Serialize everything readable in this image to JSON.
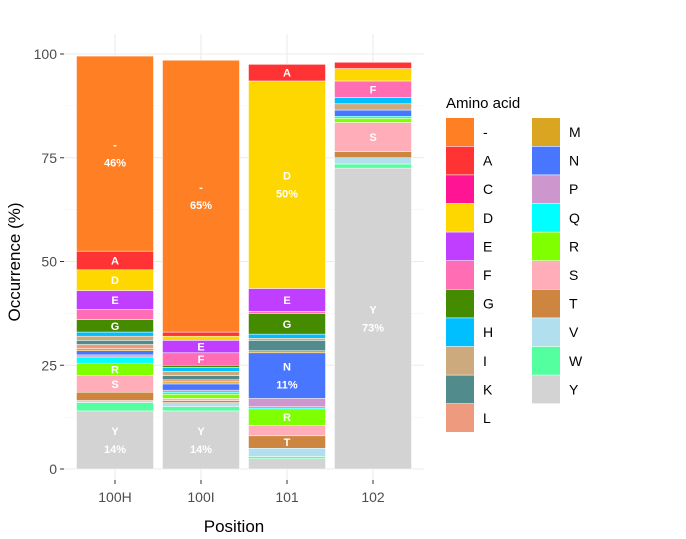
{
  "chart_data": {
    "type": "bar",
    "stacked": true,
    "xlabel": "Position",
    "ylabel": "Occurrence (%)",
    "ylim": [
      0,
      100
    ],
    "yticks": [
      0,
      25,
      50,
      75,
      100
    ],
    "grid": true,
    "legend_title": "Amino acid",
    "legend_position": "right",
    "categories": [
      "100H",
      "100I",
      "101",
      "102"
    ],
    "legend": [
      {
        "key": "-",
        "color": "#FF7F24"
      },
      {
        "key": "A",
        "color": "#FF3333"
      },
      {
        "key": "C",
        "color": "#FF1493"
      },
      {
        "key": "D",
        "color": "#FFD700"
      },
      {
        "key": "E",
        "color": "#BF3EFF"
      },
      {
        "key": "F",
        "color": "#FF6EB4"
      },
      {
        "key": "G",
        "color": "#458B00"
      },
      {
        "key": "H",
        "color": "#00BFFF"
      },
      {
        "key": "I",
        "color": "#CDAA7D"
      },
      {
        "key": "K",
        "color": "#528B8B"
      },
      {
        "key": "L",
        "color": "#EE9A7E"
      },
      {
        "key": "M",
        "color": "#DAA520"
      },
      {
        "key": "N",
        "color": "#4876FF"
      },
      {
        "key": "P",
        "color": "#CD96CD"
      },
      {
        "key": "Q",
        "color": "#00FFFF"
      },
      {
        "key": "R",
        "color": "#7FFF00"
      },
      {
        "key": "S",
        "color": "#FFAEB9"
      },
      {
        "key": "T",
        "color": "#CD853F"
      },
      {
        "key": "V",
        "color": "#B2DFEE"
      },
      {
        "key": "W",
        "color": "#54FF9F"
      },
      {
        "key": "Y",
        "color": "#D3D3D3"
      }
    ],
    "series": [
      {
        "name": "Y",
        "values": [
          14,
          14,
          2.5,
          72.5
        ]
      },
      {
        "name": "W",
        "values": [
          2,
          1,
          0.5,
          1
        ]
      },
      {
        "name": "V",
        "values": [
          0.5,
          1,
          2,
          1.5
        ]
      },
      {
        "name": "T",
        "values": [
          2,
          0.5,
          3,
          1.5
        ]
      },
      {
        "name": "S",
        "values": [
          4,
          0.5,
          2.5,
          7
        ]
      },
      {
        "name": "R",
        "values": [
          3,
          1,
          4,
          1
        ]
      },
      {
        "name": "Q",
        "values": [
          1.5,
          0.5,
          0.5,
          0.5
        ]
      },
      {
        "name": "P",
        "values": [
          0.5,
          0.5,
          2,
          0
        ]
      },
      {
        "name": "N",
        "values": [
          1,
          1.5,
          11,
          1.5
        ]
      },
      {
        "name": "M",
        "values": [
          0.5,
          0.5,
          0.5,
          0
        ]
      },
      {
        "name": "L",
        "values": [
          1,
          0.5,
          0,
          0
        ]
      },
      {
        "name": "K",
        "values": [
          1,
          1,
          2.5,
          0
        ]
      },
      {
        "name": "I",
        "values": [
          1,
          1,
          0.5,
          1.5
        ]
      },
      {
        "name": "H",
        "values": [
          1,
          1,
          1,
          1.5
        ]
      },
      {
        "name": "G",
        "values": [
          3,
          0.5,
          5,
          0
        ]
      },
      {
        "name": "F",
        "values": [
          2.5,
          3,
          0.5,
          4
        ]
      },
      {
        "name": "E",
        "values": [
          4.5,
          3,
          5.5,
          0
        ]
      },
      {
        "name": "D",
        "values": [
          5,
          1,
          50,
          3
        ]
      },
      {
        "name": "C",
        "values": [
          0,
          0,
          0,
          0
        ]
      },
      {
        "name": "A",
        "values": [
          4.5,
          1,
          4,
          1.5
        ]
      },
      {
        "name": "-",
        "values": [
          47,
          65.5,
          0,
          0
        ]
      }
    ],
    "labels": [
      {
        "category": "100H",
        "series": "Y",
        "text": "Y",
        "pct": "14%"
      },
      {
        "category": "100H",
        "series": "S",
        "text": "S",
        "pct": ""
      },
      {
        "category": "100H",
        "series": "R",
        "text": "R",
        "pct": ""
      },
      {
        "category": "100H",
        "series": "G",
        "text": "G",
        "pct": ""
      },
      {
        "category": "100H",
        "series": "E",
        "text": "E",
        "pct": ""
      },
      {
        "category": "100H",
        "series": "D",
        "text": "D",
        "pct": ""
      },
      {
        "category": "100H",
        "series": "A",
        "text": "A",
        "pct": ""
      },
      {
        "category": "100H",
        "series": "-",
        "text": "-",
        "pct": "46%"
      },
      {
        "category": "100I",
        "series": "Y",
        "text": "Y",
        "pct": "14%"
      },
      {
        "category": "100I",
        "series": "F",
        "text": "F",
        "pct": ""
      },
      {
        "category": "100I",
        "series": "E",
        "text": "E",
        "pct": ""
      },
      {
        "category": "100I",
        "series": "-",
        "text": "-",
        "pct": "65%"
      },
      {
        "category": "101",
        "series": "T",
        "text": "T",
        "pct": ""
      },
      {
        "category": "101",
        "series": "R",
        "text": "R",
        "pct": ""
      },
      {
        "category": "101",
        "series": "N",
        "text": "N",
        "pct": "11%"
      },
      {
        "category": "101",
        "series": "G",
        "text": "G",
        "pct": ""
      },
      {
        "category": "101",
        "series": "E",
        "text": "E",
        "pct": ""
      },
      {
        "category": "101",
        "series": "D",
        "text": "D",
        "pct": "50%"
      },
      {
        "category": "101",
        "series": "A",
        "text": "A",
        "pct": ""
      },
      {
        "category": "102",
        "series": "Y",
        "text": "Y",
        "pct": "73%"
      },
      {
        "category": "102",
        "series": "S",
        "text": "S",
        "pct": ""
      },
      {
        "category": "102",
        "series": "F",
        "text": "F",
        "pct": ""
      }
    ]
  }
}
